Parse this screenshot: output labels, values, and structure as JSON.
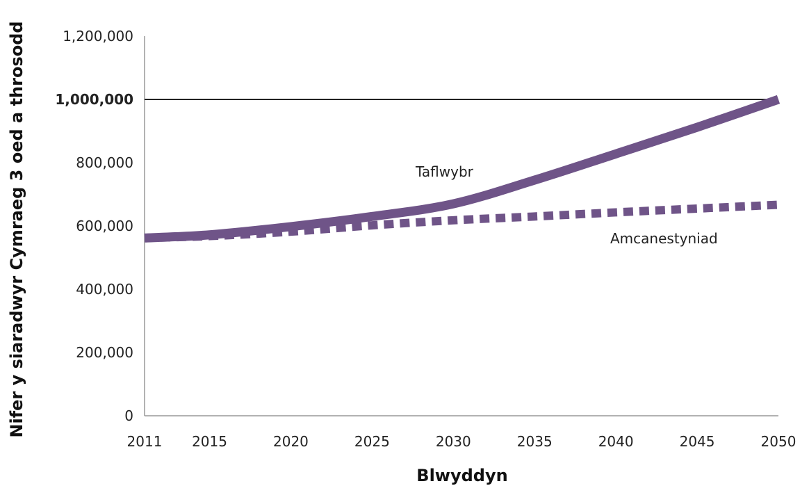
{
  "chart_data": {
    "type": "line",
    "title": "",
    "xlabel": "Blwyddyn",
    "ylabel": "Nifer y siaradwyr Cymraeg 3 oed a throsodd",
    "x_ticks": [
      "2011",
      "2015",
      "2020",
      "2025",
      "2030",
      "2035",
      "2040",
      "2045",
      "2050"
    ],
    "y_ticks": [
      "0",
      "200,000",
      "400,000",
      "600,000",
      "800,000",
      "1,000,000",
      "1,200,000"
    ],
    "xlim": [
      2011,
      2050
    ],
    "ylim": [
      0,
      1200000
    ],
    "reference_line": {
      "value": 1000000,
      "label": "1,000,000"
    },
    "colors": {
      "series": "#6f5488",
      "reference": "#222222",
      "axis": "#999999"
    },
    "series": [
      {
        "name": "Taflwybr",
        "style": "solid",
        "x": [
          2011,
          2015,
          2020,
          2025,
          2030,
          2035,
          2040,
          2045,
          2050
        ],
        "values": [
          562000,
          572000,
          598000,
          630000,
          670000,
          745000,
          828000,
          912000,
          1000000
        ]
      },
      {
        "name": "Amcanestyniad",
        "style": "dashed",
        "x": [
          2011,
          2015,
          2020,
          2025,
          2030,
          2035,
          2040,
          2045,
          2050
        ],
        "values": [
          562000,
          568000,
          582000,
          602000,
          618000,
          630000,
          643000,
          655000,
          667000
        ]
      }
    ],
    "annotations": [
      {
        "text": "Taflwybr",
        "series": "Taflwybr"
      },
      {
        "text": "Amcanestyniad",
        "series": "Amcanestyniad"
      }
    ],
    "grid": false,
    "legend": "none (inline labels)"
  }
}
